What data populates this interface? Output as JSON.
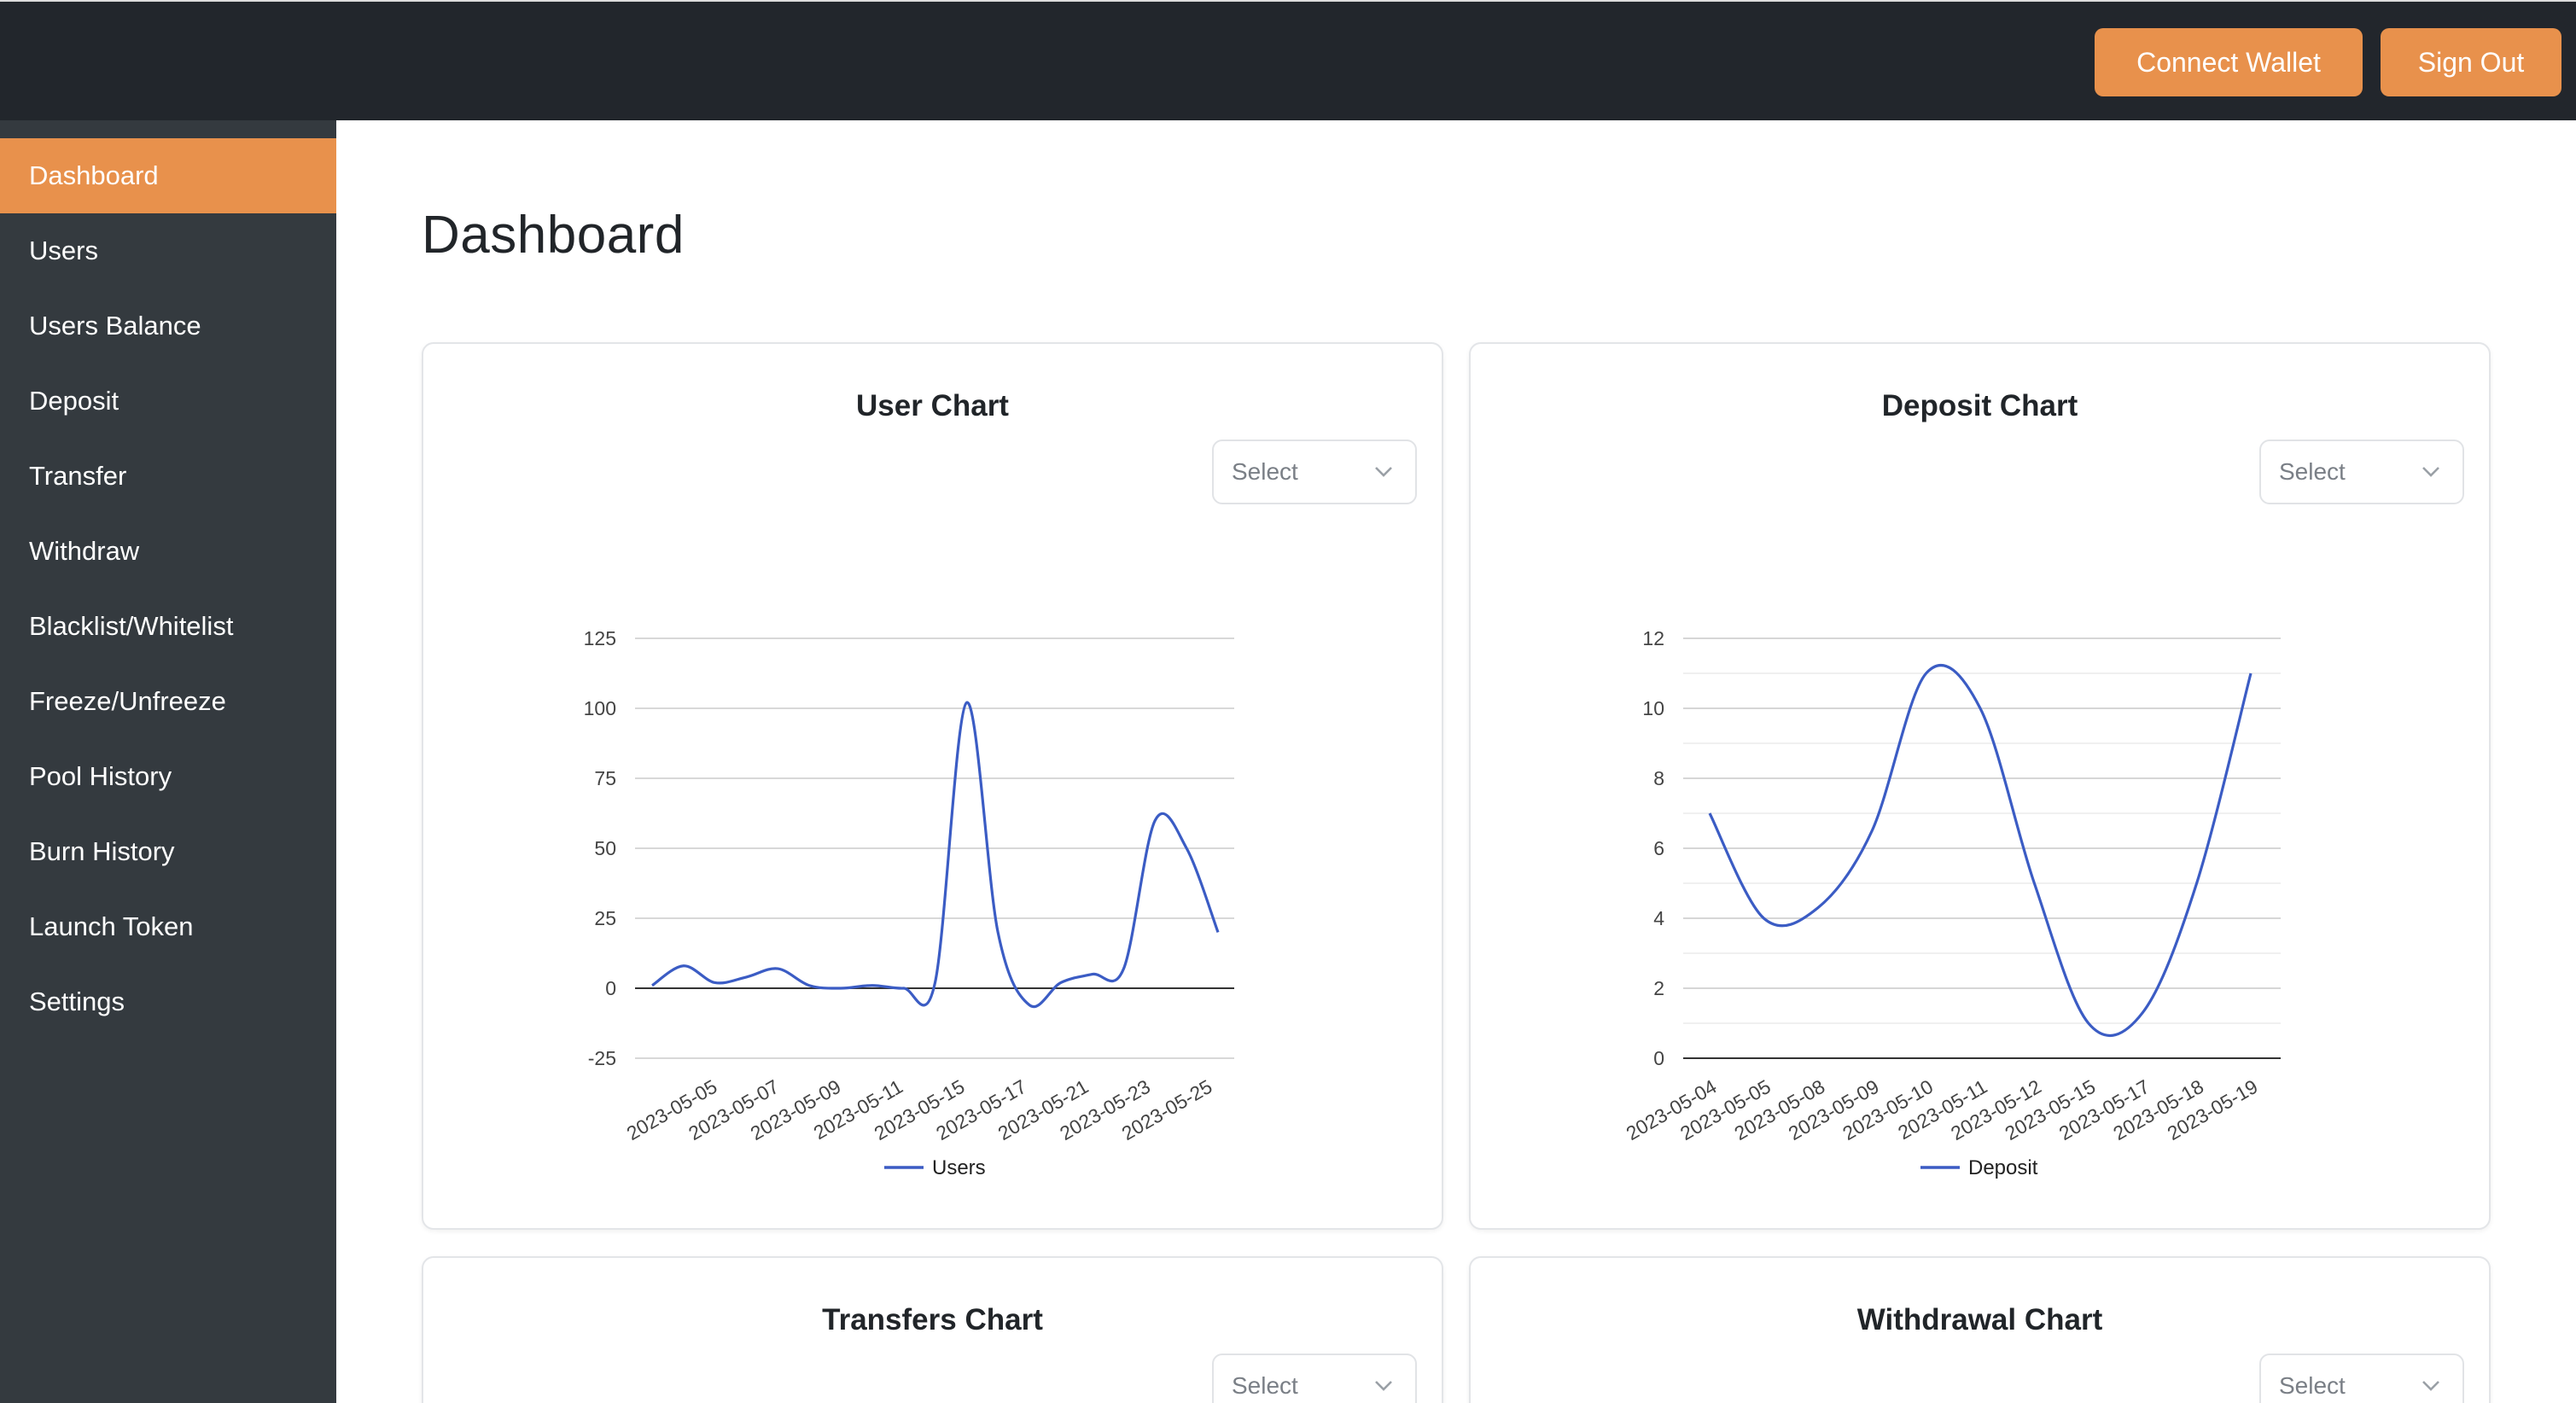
{
  "header": {
    "connect_wallet_label": "Connect Wallet",
    "sign_out_label": "Sign Out",
    "accent_color": "#e8914c",
    "background_color": "#22262c"
  },
  "sidebar": {
    "items": [
      {
        "label": "Dashboard",
        "active": true
      },
      {
        "label": "Users",
        "active": false
      },
      {
        "label": "Users Balance",
        "active": false
      },
      {
        "label": "Deposit",
        "active": false
      },
      {
        "label": "Transfer",
        "active": false
      },
      {
        "label": "Withdraw",
        "active": false
      },
      {
        "label": "Blacklist/Whitelist",
        "active": false
      },
      {
        "label": "Freeze/Unfreeze",
        "active": false
      },
      {
        "label": "Pool History",
        "active": false
      },
      {
        "label": "Burn History",
        "active": false
      },
      {
        "label": "Launch Token",
        "active": false
      },
      {
        "label": "Settings",
        "active": false
      }
    ]
  },
  "main": {
    "title": "Dashboard",
    "cards": [
      {
        "title": "User Chart",
        "select_placeholder": "Select"
      },
      {
        "title": "Deposit Chart",
        "select_placeholder": "Select"
      },
      {
        "title": "Transfers Chart",
        "select_placeholder": "Select"
      },
      {
        "title": "Withdrawal Chart",
        "select_placeholder": "Select"
      }
    ]
  },
  "chart_data": [
    {
      "type": "line",
      "title": "User Chart",
      "x": [
        "2023-05-05",
        "2023-05-06",
        "2023-05-07",
        "2023-05-08",
        "2023-05-09",
        "2023-05-10",
        "2023-05-11",
        "2023-05-14",
        "2023-05-15",
        "2023-05-16",
        "2023-05-17",
        "2023-05-18",
        "2023-05-20",
        "2023-05-21",
        "2023-05-22",
        "2023-05-23",
        "2023-05-24",
        "2023-05-25",
        "2023-05-26"
      ],
      "x_tick_labels": [
        "2023-05-05",
        "2023-05-07",
        "2023-05-09",
        "2023-05-11",
        "2023-05-15",
        "2023-05-17",
        "2023-05-21",
        "2023-05-23",
        "2023-05-25"
      ],
      "series": [
        {
          "name": "Users",
          "values": [
            1,
            8,
            2,
            4,
            7,
            1,
            0,
            1,
            0,
            2,
            102,
            20,
            -6,
            2,
            5,
            7,
            60,
            50,
            20
          ],
          "color": "#3b5cc4"
        }
      ],
      "y_ticks": [
        -25,
        0,
        25,
        50,
        75,
        100,
        125
      ],
      "ylim": [
        -25,
        125
      ],
      "grid": true,
      "legend": "bottom"
    },
    {
      "type": "line",
      "title": "Deposit Chart",
      "x": [
        "2023-05-04",
        "2023-05-05",
        "2023-05-08",
        "2023-05-09",
        "2023-05-10",
        "2023-05-11",
        "2023-05-12",
        "2023-05-15",
        "2023-05-17",
        "2023-05-18",
        "2023-05-19"
      ],
      "x_tick_labels": [
        "2023-05-04",
        "2023-05-05",
        "2023-05-08",
        "2023-05-09",
        "2023-05-10",
        "2023-05-11",
        "2023-05-12",
        "2023-05-15",
        "2023-05-17",
        "2023-05-18",
        "2023-05-19"
      ],
      "series": [
        {
          "name": "Deposit",
          "values": [
            7,
            4,
            4.3,
            6.5,
            11,
            10,
            5,
            1,
            1.3,
            5,
            11
          ],
          "color": "#3b5cc4"
        }
      ],
      "y_ticks": [
        0,
        2,
        4,
        6,
        8,
        10,
        12
      ],
      "ylim": [
        0,
        12
      ],
      "grid": true,
      "legend": "bottom"
    }
  ]
}
